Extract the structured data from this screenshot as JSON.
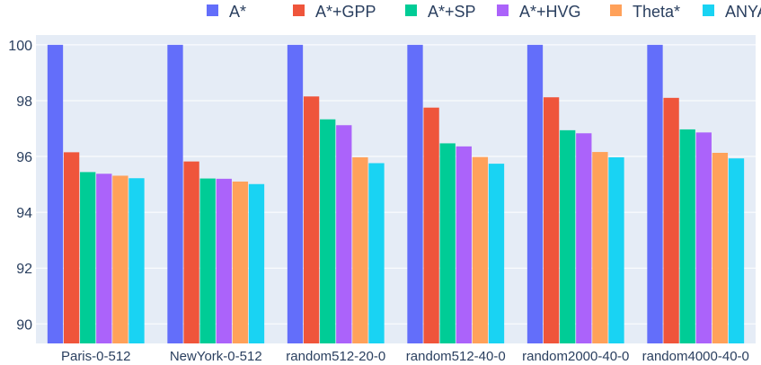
{
  "chart_data": {
    "type": "bar",
    "title": "",
    "xlabel": "",
    "ylabel": "",
    "ylim": [
      89.3,
      100.35
    ],
    "yticks": [
      90,
      92,
      94,
      96,
      98,
      100
    ],
    "grid": true,
    "legend_position": "top-right",
    "categories": [
      "Paris-0-512",
      "NewYork-0-512",
      "random512-20-0",
      "random512-40-0",
      "random2000-40-0",
      "random4000-40-0"
    ],
    "series": [
      {
        "name": "A*",
        "color": "#636efa",
        "values": [
          100,
          100,
          100,
          100,
          100,
          100
        ]
      },
      {
        "name": "A*+GPP",
        "color": "#ef553b",
        "values": [
          96.15,
          95.82,
          98.15,
          97.75,
          98.12,
          98.1
        ]
      },
      {
        "name": "A*+SP",
        "color": "#00cc96",
        "values": [
          95.44,
          95.21,
          97.33,
          96.47,
          96.94,
          96.97
        ]
      },
      {
        "name": "A*+HVG",
        "color": "#ab63fa",
        "values": [
          95.38,
          95.2,
          97.12,
          96.36,
          96.83,
          96.86
        ]
      },
      {
        "name": "Theta*",
        "color": "#ffa15a",
        "values": [
          95.31,
          95.1,
          95.97,
          95.98,
          96.16,
          96.13
        ]
      },
      {
        "name": "ANYA",
        "color": "#19d3f3",
        "values": [
          95.22,
          95.01,
          95.76,
          95.74,
          95.97,
          95.93
        ]
      }
    ]
  }
}
